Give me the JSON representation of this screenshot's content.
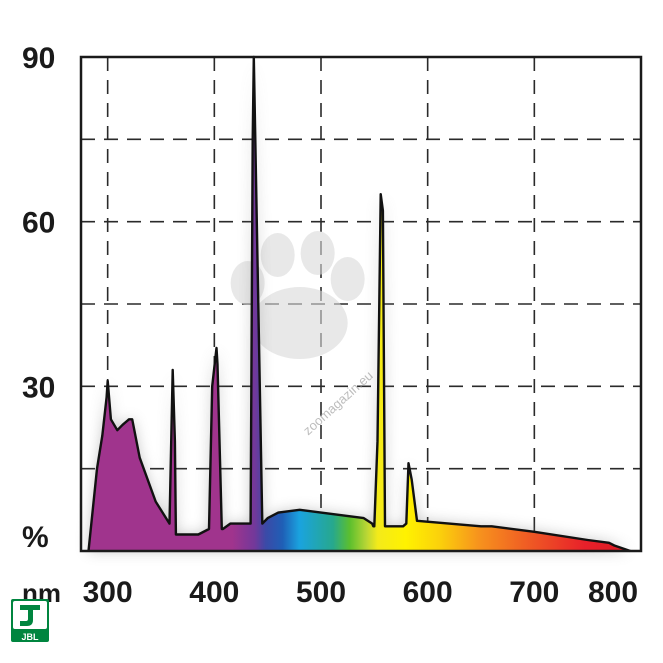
{
  "chart_data": {
    "type": "area",
    "title": "",
    "xlabel": "nm",
    "ylabel": "%",
    "xlim": [
      275,
      800
    ],
    "ylim": [
      0,
      90
    ],
    "x_ticks": [
      300,
      400,
      500,
      600,
      700,
      800
    ],
    "y_ticks": [
      30,
      60,
      90
    ],
    "x_tick_labels": [
      "300",
      "400",
      "500",
      "600",
      "700",
      "800"
    ],
    "y_tick_labels": [
      "30",
      "60",
      "90"
    ],
    "grid": "dashed",
    "legend": "none",
    "series": [
      {
        "x": [
          282,
          290,
          295,
          299,
          300,
          303,
          309,
          314,
          320,
          323,
          330,
          345,
          358,
          361,
          363,
          364,
          380,
          385,
          395,
          398,
          402,
          403,
          407,
          408,
          415,
          420,
          428,
          432,
          434,
          436,
          437,
          445,
          450,
          460,
          480,
          500,
          520,
          540,
          548,
          549,
          550,
          553,
          556,
          558,
          560,
          563,
          565,
          577,
          580,
          582,
          585,
          590,
          650,
          660,
          700,
          750,
          770,
          775,
          790
        ],
        "y": [
          0,
          15,
          21,
          28,
          31,
          24,
          22,
          23,
          24,
          24,
          17,
          9,
          5,
          33,
          20,
          3,
          3,
          3,
          4,
          30,
          37,
          34,
          4,
          4,
          5,
          5,
          5,
          5,
          5,
          75,
          90,
          5,
          6,
          7,
          7.5,
          7,
          6.5,
          6,
          5,
          4.5,
          4.5,
          20,
          65,
          62,
          4.5,
          4.5,
          4.5,
          4.5,
          5,
          16,
          13,
          5.5,
          4.5,
          4.5,
          3.5,
          2,
          1.5,
          1,
          0
        ]
      }
    ],
    "annotations": [
      "zoomagazin.eu"
    ]
  },
  "labels": {
    "unit_x": "nm",
    "unit_y": "%"
  },
  "logo": {
    "text": "JBL"
  },
  "colors": {
    "spectrum_violet": "#a0348d",
    "spectrum_blue": "#1f5fb6",
    "spectrum_cyan": "#1aa3df",
    "spectrum_green": "#5cbf2e",
    "spectrum_yellow": "#fff200",
    "spectrum_orange": "#f7931d",
    "spectrum_red": "#e8202a",
    "logo_green": "#00853f"
  }
}
